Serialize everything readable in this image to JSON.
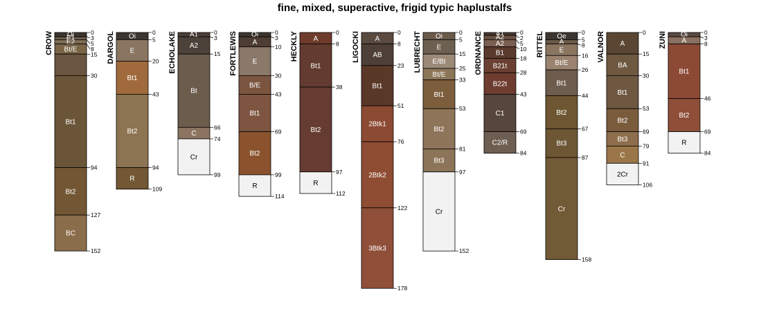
{
  "chart_data": {
    "type": "soil-profile-sketch",
    "title": "fine, mixed, superactive, frigid typic haplustalfs",
    "depth_unit": "cm",
    "profiles": [
      {
        "name": "CROW",
        "horizons": [
          {
            "name": "Oi",
            "top": 0,
            "bottom": 3,
            "color": "#3d3530"
          },
          {
            "name": "E1",
            "top": 3,
            "bottom": 5,
            "color": "#6e5e4c"
          },
          {
            "name": "E2",
            "top": 5,
            "bottom": 8,
            "color": "#7d6b55"
          },
          {
            "name": "Bt/E",
            "top": 8,
            "bottom": 15,
            "color": "#7a6547"
          },
          {
            "name": "",
            "top": 15,
            "bottom": 30,
            "color": "#6a5640"
          },
          {
            "name": "Bt1",
            "top": 30,
            "bottom": 94,
            "color": "#6b5538"
          },
          {
            "name": "Bt2",
            "top": 94,
            "bottom": 127,
            "color": "#735734"
          },
          {
            "name": "BC",
            "top": 127,
            "bottom": 152,
            "color": "#8a6d4a"
          }
        ]
      },
      {
        "name": "DARGOL",
        "horizons": [
          {
            "name": "Oi",
            "top": 0,
            "bottom": 5,
            "color": "#3d3530"
          },
          {
            "name": "E",
            "top": 5,
            "bottom": 20,
            "color": "#8a7560"
          },
          {
            "name": "Bt1",
            "top": 20,
            "bottom": 43,
            "color": "#a06a3c"
          },
          {
            "name": "Bt2",
            "top": 43,
            "bottom": 94,
            "color": "#8d7452"
          },
          {
            "name": "R",
            "top": 94,
            "bottom": 109,
            "color": "#735834"
          }
        ]
      },
      {
        "name": "ECHOLAKE",
        "horizons": [
          {
            "name": "A1",
            "top": 0,
            "bottom": 3,
            "color": "#4a3e36"
          },
          {
            "name": "A2",
            "top": 3,
            "bottom": 15,
            "color": "#4c423a"
          },
          {
            "name": "Bt",
            "top": 15,
            "bottom": 66,
            "color": "#6c5c4c"
          },
          {
            "name": "C",
            "top": 66,
            "bottom": 74,
            "color": "#8b7560"
          },
          {
            "name": "Cr",
            "top": 74,
            "bottom": 99,
            "color": "#f2f2f2"
          }
        ]
      },
      {
        "name": "FORTLEWIS",
        "horizons": [
          {
            "name": "Oi",
            "top": 0,
            "bottom": 3,
            "color": "#3d3530"
          },
          {
            "name": "A",
            "top": 3,
            "bottom": 10,
            "color": "#4e3d33"
          },
          {
            "name": "E",
            "top": 10,
            "bottom": 30,
            "color": "#8a7868"
          },
          {
            "name": "B/E",
            "top": 30,
            "bottom": 43,
            "color": "#7c5540"
          },
          {
            "name": "Bt1",
            "top": 43,
            "bottom": 69,
            "color": "#7d5540"
          },
          {
            "name": "Bt2",
            "top": 69,
            "bottom": 99,
            "color": "#8a532d"
          },
          {
            "name": "R",
            "top": 99,
            "bottom": 114,
            "color": "#f2f2f2"
          }
        ]
      },
      {
        "name": "HECKLY",
        "horizons": [
          {
            "name": "A",
            "top": 0,
            "bottom": 8,
            "color": "#6f3c2c"
          },
          {
            "name": "Bt1",
            "top": 8,
            "bottom": 38,
            "color": "#633b30"
          },
          {
            "name": "Bt2",
            "top": 38,
            "bottom": 97,
            "color": "#663c32"
          },
          {
            "name": "R",
            "top": 97,
            "bottom": 112,
            "color": "#f2f2f2"
          }
        ]
      },
      {
        "name": "LIGOCKI",
        "horizons": [
          {
            "name": "A",
            "top": 0,
            "bottom": 8,
            "color": "#5a4a40"
          },
          {
            "name": "AB",
            "top": 8,
            "bottom": 23,
            "color": "#4e4038"
          },
          {
            "name": "Bt1",
            "top": 23,
            "bottom": 51,
            "color": "#5a3828"
          },
          {
            "name": "2Btk1",
            "top": 51,
            "bottom": 76,
            "color": "#8c4a32"
          },
          {
            "name": "2Btk2",
            "top": 76,
            "bottom": 122,
            "color": "#8e4c33"
          },
          {
            "name": "3Btk3",
            "top": 122,
            "bottom": 178,
            "color": "#8f4f38"
          }
        ]
      },
      {
        "name": "LUBRECHT",
        "horizons": [
          {
            "name": "Oi",
            "top": 0,
            "bottom": 5,
            "color": "#6a5a4a"
          },
          {
            "name": "E",
            "top": 5,
            "bottom": 15,
            "color": "#6e6050"
          },
          {
            "name": "E/Bt",
            "top": 15,
            "bottom": 25,
            "color": "#9c8a78"
          },
          {
            "name": "Bt/E",
            "top": 25,
            "bottom": 33,
            "color": "#8c7658"
          },
          {
            "name": "Bt1",
            "top": 33,
            "bottom": 53,
            "color": "#7c5e3c"
          },
          {
            "name": "Bt2",
            "top": 53,
            "bottom": 81,
            "color": "#8e7458"
          },
          {
            "name": "Bt3",
            "top": 81,
            "bottom": 97,
            "color": "#8c7458"
          },
          {
            "name": "Cr",
            "top": 97,
            "bottom": 152,
            "color": "#f2f2f2"
          }
        ]
      },
      {
        "name": "ORDNANCE",
        "horizons": [
          {
            "name": "A1",
            "top": 0,
            "bottom": 2,
            "color": "#4a3a30"
          },
          {
            "name": "A2",
            "top": 2,
            "bottom": 5,
            "color": "#6a5040"
          },
          {
            "name": "A2",
            "top": 5,
            "bottom": 10,
            "color": "#7a6050"
          },
          {
            "name": "B1",
            "top": 10,
            "bottom": 18,
            "color": "#5a3a2c"
          },
          {
            "name": "B21t",
            "top": 18,
            "bottom": 28,
            "color": "#6a4032"
          },
          {
            "name": "B22t",
            "top": 28,
            "bottom": 43,
            "color": "#6e3c30"
          },
          {
            "name": "C1",
            "top": 43,
            "bottom": 69,
            "color": "#57463c"
          },
          {
            "name": "C2/R",
            "top": 69,
            "bottom": 84,
            "color": "#6e5e52"
          }
        ]
      },
      {
        "name": "RITTEL",
        "horizons": [
          {
            "name": "Oe",
            "top": 0,
            "bottom": 5,
            "color": "#3d3530"
          },
          {
            "name": "A",
            "top": 5,
            "bottom": 8,
            "color": "#6a5a48"
          },
          {
            "name": "E",
            "top": 8,
            "bottom": 16,
            "color": "#8a7560"
          },
          {
            "name": "Bt/E",
            "top": 16,
            "bottom": 26,
            "color": "#9a8470"
          },
          {
            "name": "Bt1",
            "top": 26,
            "bottom": 44,
            "color": "#6e5c4c"
          },
          {
            "name": "Bt2",
            "top": 44,
            "bottom": 67,
            "color": "#6e5632"
          },
          {
            "name": "Bt3",
            "top": 67,
            "bottom": 87,
            "color": "#6c5634"
          },
          {
            "name": "Cr",
            "top": 87,
            "bottom": 158,
            "color": "#715a36"
          }
        ]
      },
      {
        "name": "VALNOR",
        "horizons": [
          {
            "name": "A",
            "top": 0,
            "bottom": 15,
            "color": "#5a4632"
          },
          {
            "name": "BA",
            "top": 15,
            "bottom": 30,
            "color": "#6e5840"
          },
          {
            "name": "Bt1",
            "top": 30,
            "bottom": 53,
            "color": "#6e5842"
          },
          {
            "name": "Bt2",
            "top": 53,
            "bottom": 69,
            "color": "#7a5c3c"
          },
          {
            "name": "Bt3",
            "top": 69,
            "bottom": 79,
            "color": "#8e6e4c"
          },
          {
            "name": "C",
            "top": 79,
            "bottom": 91,
            "color": "#9a7648"
          },
          {
            "name": "2Cr",
            "top": 91,
            "bottom": 106,
            "color": "#f2f2f2"
          }
        ]
      },
      {
        "name": "ZUNI",
        "horizons": [
          {
            "name": "Oi",
            "top": 0,
            "bottom": 3,
            "color": "#5a4a40"
          },
          {
            "name": "A",
            "top": 3,
            "bottom": 8,
            "color": "#8a7060"
          },
          {
            "name": "Bt1",
            "top": 8,
            "bottom": 46,
            "color": "#8c4a35"
          },
          {
            "name": "Bt2",
            "top": 46,
            "bottom": 69,
            "color": "#8e4e38"
          },
          {
            "name": "R",
            "top": 69,
            "bottom": 84,
            "color": "#f2f2f2"
          }
        ]
      }
    ]
  }
}
